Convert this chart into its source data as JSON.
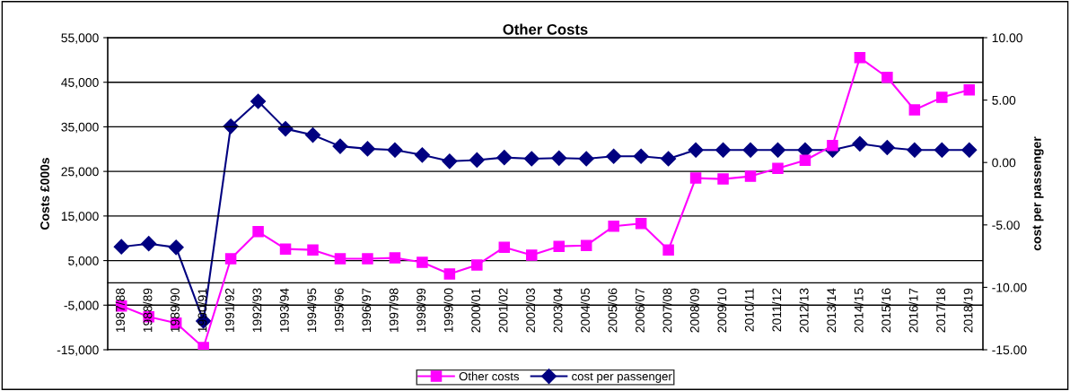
{
  "chart_data": {
    "type": "line",
    "title": "Other Costs",
    "ylabel": "Costs £000s",
    "y2label": "cost per passenger",
    "categories": [
      "1987/88",
      "1988/89",
      "1989/90",
      "1990/91",
      "1991/92",
      "1992/93",
      "1993/94",
      "1994/95",
      "1995/96",
      "1996/97",
      "1997/98",
      "1998/99",
      "1999/00",
      "2000/01",
      "2001/02",
      "2002/03",
      "2003/04",
      "2004/05",
      "2005/06",
      "2006/07",
      "2007/08",
      "2008/09",
      "2009/10",
      "2010/11",
      "2011/12",
      "2012/13",
      "2013/14",
      "2014/15",
      "2015/16",
      "2016/17",
      "2017/18",
      "2018/19"
    ],
    "series": [
      {
        "name": "Other costs",
        "color": "#ff00ff",
        "marker": "square",
        "values": [
          -5200,
          -7600,
          -9000,
          -14500,
          5400,
          11500,
          7600,
          7400,
          5400,
          5400,
          5600,
          4600,
          2000,
          4000,
          8000,
          6200,
          8200,
          8400,
          12700,
          13300,
          7400,
          23500,
          23300,
          23900,
          25700,
          27500,
          30800,
          50500,
          46100,
          38800,
          41600,
          43300
        ]
      },
      {
        "name": "cost per passenger",
        "color": "#000080",
        "marker": "diamond",
        "axis": "y2",
        "values": [
          -6.75,
          -6.5,
          -6.8,
          -12.7,
          2.9,
          4.9,
          2.7,
          2.2,
          1.3,
          1.1,
          1.0,
          0.6,
          0.1,
          0.2,
          0.4,
          0.3,
          0.35,
          0.3,
          0.5,
          0.5,
          0.3,
          1.0,
          1.0,
          1.0,
          1.0,
          1.0,
          1.0,
          1.5,
          1.2,
          1.0,
          1.0,
          1.0
        ]
      }
    ],
    "ylim": [
      -15000,
      55000
    ],
    "yticks": [
      {
        "value": -15000,
        "label": "-15,000"
      },
      {
        "value": -5000,
        "label": "-5,000"
      },
      {
        "value": 5000,
        "label": "5,000"
      },
      {
        "value": 15000,
        "label": "15,000"
      },
      {
        "value": 25000,
        "label": "25,000"
      },
      {
        "value": 35000,
        "label": "35,000"
      },
      {
        "value": 45000,
        "label": "45,000"
      },
      {
        "value": 55000,
        "label": "55,000"
      }
    ],
    "y2lim": [
      -15,
      10
    ],
    "y2ticks": [
      {
        "value": -15,
        "label": "-15.00"
      },
      {
        "value": -10,
        "label": "-10.00"
      },
      {
        "value": -5,
        "label": "-5.00"
      },
      {
        "value": 0,
        "label": "0.00"
      },
      {
        "value": 5,
        "label": "5.00"
      },
      {
        "value": 10,
        "label": "10.00"
      }
    ],
    "grid": "y",
    "legend": "bottom",
    "line_style": "solid"
  }
}
